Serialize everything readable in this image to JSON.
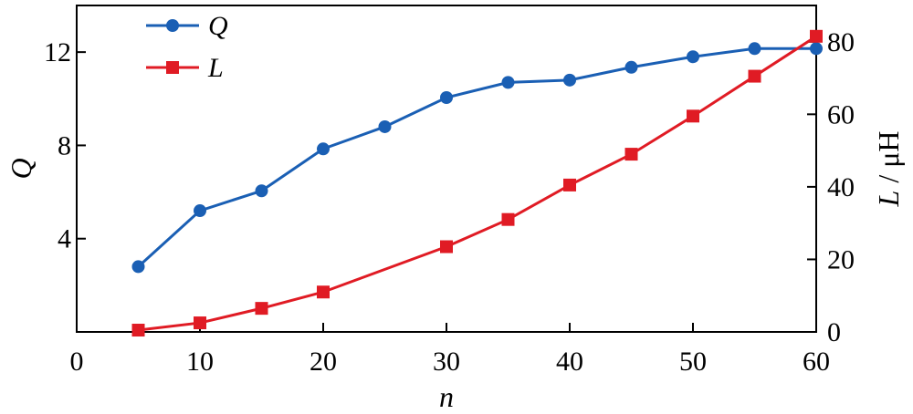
{
  "chart_data": {
    "type": "line",
    "xlabel": "n",
    "ylabel_left": "Q",
    "ylabel_right_var": "L",
    "ylabel_right_unit": " / μH",
    "xlim": [
      0,
      60
    ],
    "ylim_left": [
      0,
      14
    ],
    "ylim_right": [
      0,
      90
    ],
    "x_ticks": [
      0,
      10,
      20,
      30,
      40,
      50,
      60
    ],
    "y_left_ticks": [
      4,
      8,
      12
    ],
    "y_right_ticks": [
      0,
      20,
      40,
      60,
      80
    ],
    "grid": false,
    "legend_position": "top-left",
    "series": [
      {
        "name": "Q",
        "axis": "left",
        "color": "#1a5fb4",
        "marker": "circle",
        "x": [
          5,
          10,
          15,
          20,
          25,
          30,
          35,
          40,
          45,
          50,
          55,
          60
        ],
        "values": [
          2.8,
          5.2,
          6.05,
          7.85,
          8.8,
          10.05,
          10.7,
          10.8,
          11.35,
          11.8,
          12.15,
          12.15
        ]
      },
      {
        "name": "L",
        "axis": "right",
        "color": "#e01b24",
        "marker": "square",
        "x": [
          5,
          10,
          15,
          20,
          30,
          35,
          40,
          45,
          50,
          55,
          60
        ],
        "values": [
          0.5,
          2.5,
          6.5,
          11,
          23.5,
          31,
          40.5,
          49,
          59.5,
          70.5,
          81.5
        ]
      }
    ]
  }
}
